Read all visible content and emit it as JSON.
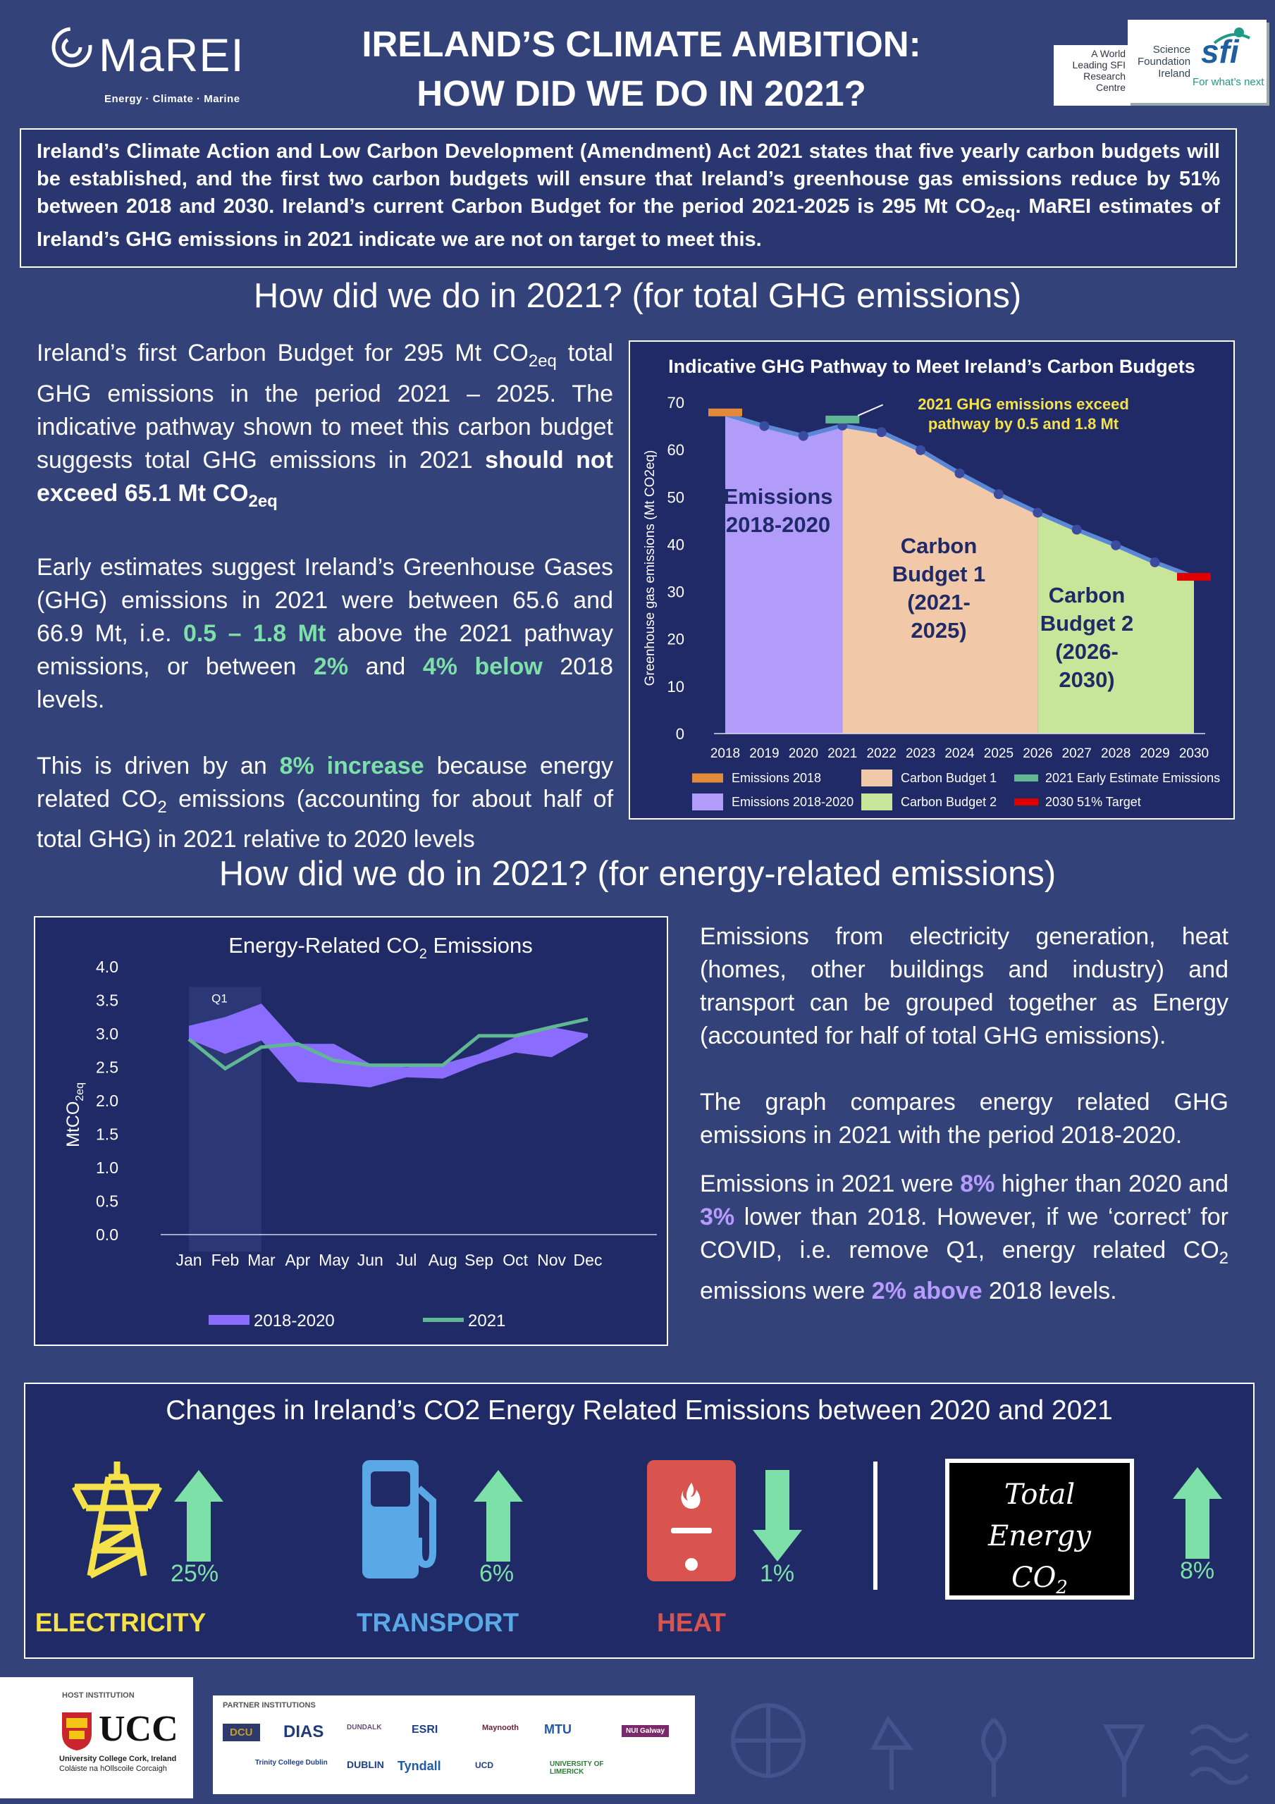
{
  "header": {
    "logo_text": "MaREI",
    "logo_tagline": "Energy · Climate · Marine",
    "title_line1": "IRELAND’S CLIMATE AMBITION:",
    "title_line2": "HOW DID WE DO IN 2021?",
    "sfi_card1": [
      "A World",
      "Leading SFI",
      "Research",
      "Centre"
    ],
    "sfi_card2_lines": [
      "Science",
      "Foundation",
      "Ireland"
    ],
    "sfi_mark": "sfi",
    "sfi_slogan": "For what’s next"
  },
  "intro": {
    "text_a": "Ireland’s Climate Action and Low Carbon Development (Amendment) Act 2021 states that five yearly carbon budgets will be established, and the first two carbon budgets will ensure that Ireland’s greenhouse gas emissions reduce by 51% between 2018 and 2030. Ireland’s current Carbon Budget for the period 2021-2025 is 295 Mt CO",
    "text_sub": "2eq",
    "text_b": ". MaREI estimates of Ireland’s GHG emissions in 2021 indicate we are not on target to meet this."
  },
  "section1": {
    "heading": "How did we do in 2021? (for total GHG emissions)",
    "p1_a": "Ireland’s first Carbon Budget for 295 Mt CO",
    "p1_sub": "2eq",
    "p1_b": " total GHG emissions in the period 2021 – 2025. The indicative pathway shown to meet this carbon budget suggests total GHG emissions in 2021 ",
    "p1_bold": "should not exceed 65.1 Mt CO",
    "p1_bold_sub": "2eq",
    "p2_a": "Early estimates suggest Ireland’s Greenhouse Gases (GHG) emissions in 2021 were between 65.6 and 66.9 Mt, i.e. ",
    "p2_g1": "0.5 – 1.8 Mt",
    "p2_b": " above the 2021 pathway emissions, or between ",
    "p2_g2": "2%",
    "p2_c": " and ",
    "p2_g3": "4% below",
    "p2_d": " 2018 levels.",
    "p3_a": "This is driven by an ",
    "p3_g": "8% increase",
    "p3_b": " because energy related CO",
    "p3_sub": "2",
    "p3_c": " emissions (accounting for about half of total GHG) in 2021 relative to 2020 levels"
  },
  "section2": {
    "heading": "How did we do in 2021? (for energy-related emissions)",
    "p1": "Emissions from electricity generation, heat (homes, other buildings and industry) and transport can be grouped together as Energy (accounted for half of total GHG emissions).",
    "p2": "The graph compares energy related GHG emissions in 2021 with the period 2018-2020.",
    "p3_a": "Emissions in 2021 were ",
    "p3_p1": "8%",
    "p3_b": " higher than 2020 and ",
    "p3_p2": "3%",
    "p3_c": " lower than 2018. However, if we ‘correct’ for COVID, i.e. remove Q1",
    "p3_d": ", energy related CO",
    "p3_sub": "2",
    "p3_e": " emissions were ",
    "p3_p3": "2% above",
    "p3_f": " 2018 levels."
  },
  "chart_data": [
    {
      "type": "area",
      "title": "Indicative GHG Pathway to Meet Ireland’s Carbon Budgets",
      "ylabel": "Greenhouse gas emissions (Mt CO2eq)",
      "xlabel": "",
      "ylim": [
        0,
        70
      ],
      "yticks": [
        0,
        10,
        20,
        30,
        40,
        50,
        60,
        70
      ],
      "x": [
        2018,
        2019,
        2020,
        2021,
        2022,
        2023,
        2024,
        2025,
        2026,
        2027,
        2028,
        2029,
        2030
      ],
      "pathway": [
        67.5,
        65.0,
        62.9,
        65.1,
        63.7,
        59.9,
        55.0,
        50.6,
        46.7,
        43.1,
        39.8,
        36.2,
        33.1
      ],
      "emissions_2018": 67.8,
      "early_estimate_2021": 66.3,
      "target_2030": 33.2,
      "regions": [
        {
          "name": "Emissions 2018-2020",
          "label": [
            "Emissions",
            "2018-2020"
          ],
          "from": 2018,
          "to": 2021,
          "color": "#b19cfa"
        },
        {
          "name": "Carbon Budget 1",
          "label": [
            "Carbon",
            "Budget 1",
            "(2021-",
            "2025)"
          ],
          "from": 2021,
          "to": 2026,
          "color": "#f2c9a8"
        },
        {
          "name": "Carbon Budget 2",
          "label": [
            "Carbon",
            "Budget 2",
            "(2026-",
            "2030)"
          ],
          "from": 2026,
          "to": 2030,
          "color": "#c8e59a"
        }
      ],
      "annotation": [
        "2021 GHG emissions exceed",
        "pathway by 0.5 and 1.8 Mt"
      ],
      "legend": [
        "Emissions 2018",
        "Carbon Budget 1",
        "2021 Early Estimate Emissions",
        "Emissions 2018-2020",
        "Carbon Budget 2",
        "2030 51% Target"
      ],
      "legend_colors": [
        "#e2893a",
        "#f2c9a8",
        "#5fb893",
        "#b19cfa",
        "#c8e59a",
        "#e00000"
      ]
    },
    {
      "type": "area",
      "title_a": "Energy-Related CO",
      "title_sub": "2",
      "title_b": " Emissions",
      "ylabel_a": "MtCO",
      "ylabel_sub": "2eq",
      "ylim": [
        0,
        4
      ],
      "yticks": [
        "0.0",
        "0.5",
        "1.0",
        "1.5",
        "2.0",
        "2.5",
        "3.0",
        "3.5",
        "4.0"
      ],
      "categories": [
        "Jan",
        "Feb",
        "Mar",
        "Apr",
        "May",
        "Jun",
        "Jul",
        "Aug",
        "Sep",
        "Oct",
        "Nov",
        "Dec"
      ],
      "band_2018_2020_high": [
        3.12,
        3.25,
        3.45,
        2.85,
        2.85,
        2.55,
        2.5,
        2.55,
        2.7,
        2.95,
        3.1,
        3.0
      ],
      "band_2018_2020_low": [
        2.92,
        2.7,
        2.9,
        2.28,
        2.25,
        2.2,
        2.35,
        2.33,
        2.55,
        2.72,
        2.65,
        2.95
      ],
      "series_2021": [
        2.92,
        2.48,
        2.8,
        2.85,
        2.6,
        2.53,
        2.53,
        2.53,
        2.97,
        2.97,
        3.1,
        3.22
      ],
      "q1_label": "Q1",
      "legend": [
        "2018-2020",
        "2021"
      ],
      "colors": {
        "band": "#8a6cff",
        "line": "#5fb893"
      }
    }
  ],
  "changes": {
    "title": "Changes in Ireland’s CO2 Energy Related Emissions between 2020 and 2021",
    "items": [
      {
        "name": "ELECTRICITY",
        "pct": "25%",
        "direction": "up",
        "icon": "pylon-icon",
        "color": "#f5e14a"
      },
      {
        "name": "TRANSPORT",
        "pct": "6%",
        "direction": "up",
        "icon": "fuel-pump-icon",
        "color": "#5aa9e6"
      },
      {
        "name": "HEAT",
        "pct": "1%",
        "direction": "down",
        "icon": "boiler-icon",
        "color": "#d9544f"
      }
    ],
    "total_lines": [
      "Total",
      "Energy"
    ],
    "total_co": "CO",
    "total_sub": "2",
    "total_pct": "8%",
    "arrow_color": "#7de0a8"
  },
  "footer": {
    "host_label": "HOST INSTITUTION",
    "host_name": "UCC",
    "host_sub1": "University College Cork, Ireland",
    "host_sub2": "Coláiste na hOllscoile Corcaigh",
    "partners_label": "PARTNER INSTITUTIONS",
    "partners_row1": [
      "DCU",
      "DIAS",
      "DUNDALK",
      "ESRI",
      "Maynooth",
      "MTU",
      "NUI Galway"
    ],
    "partners_row2": [
      "Trinity College Dublin",
      "DUBLIN",
      "Tyndall",
      "UCD",
      "UNIVERSITY OF LIMERICK"
    ]
  }
}
